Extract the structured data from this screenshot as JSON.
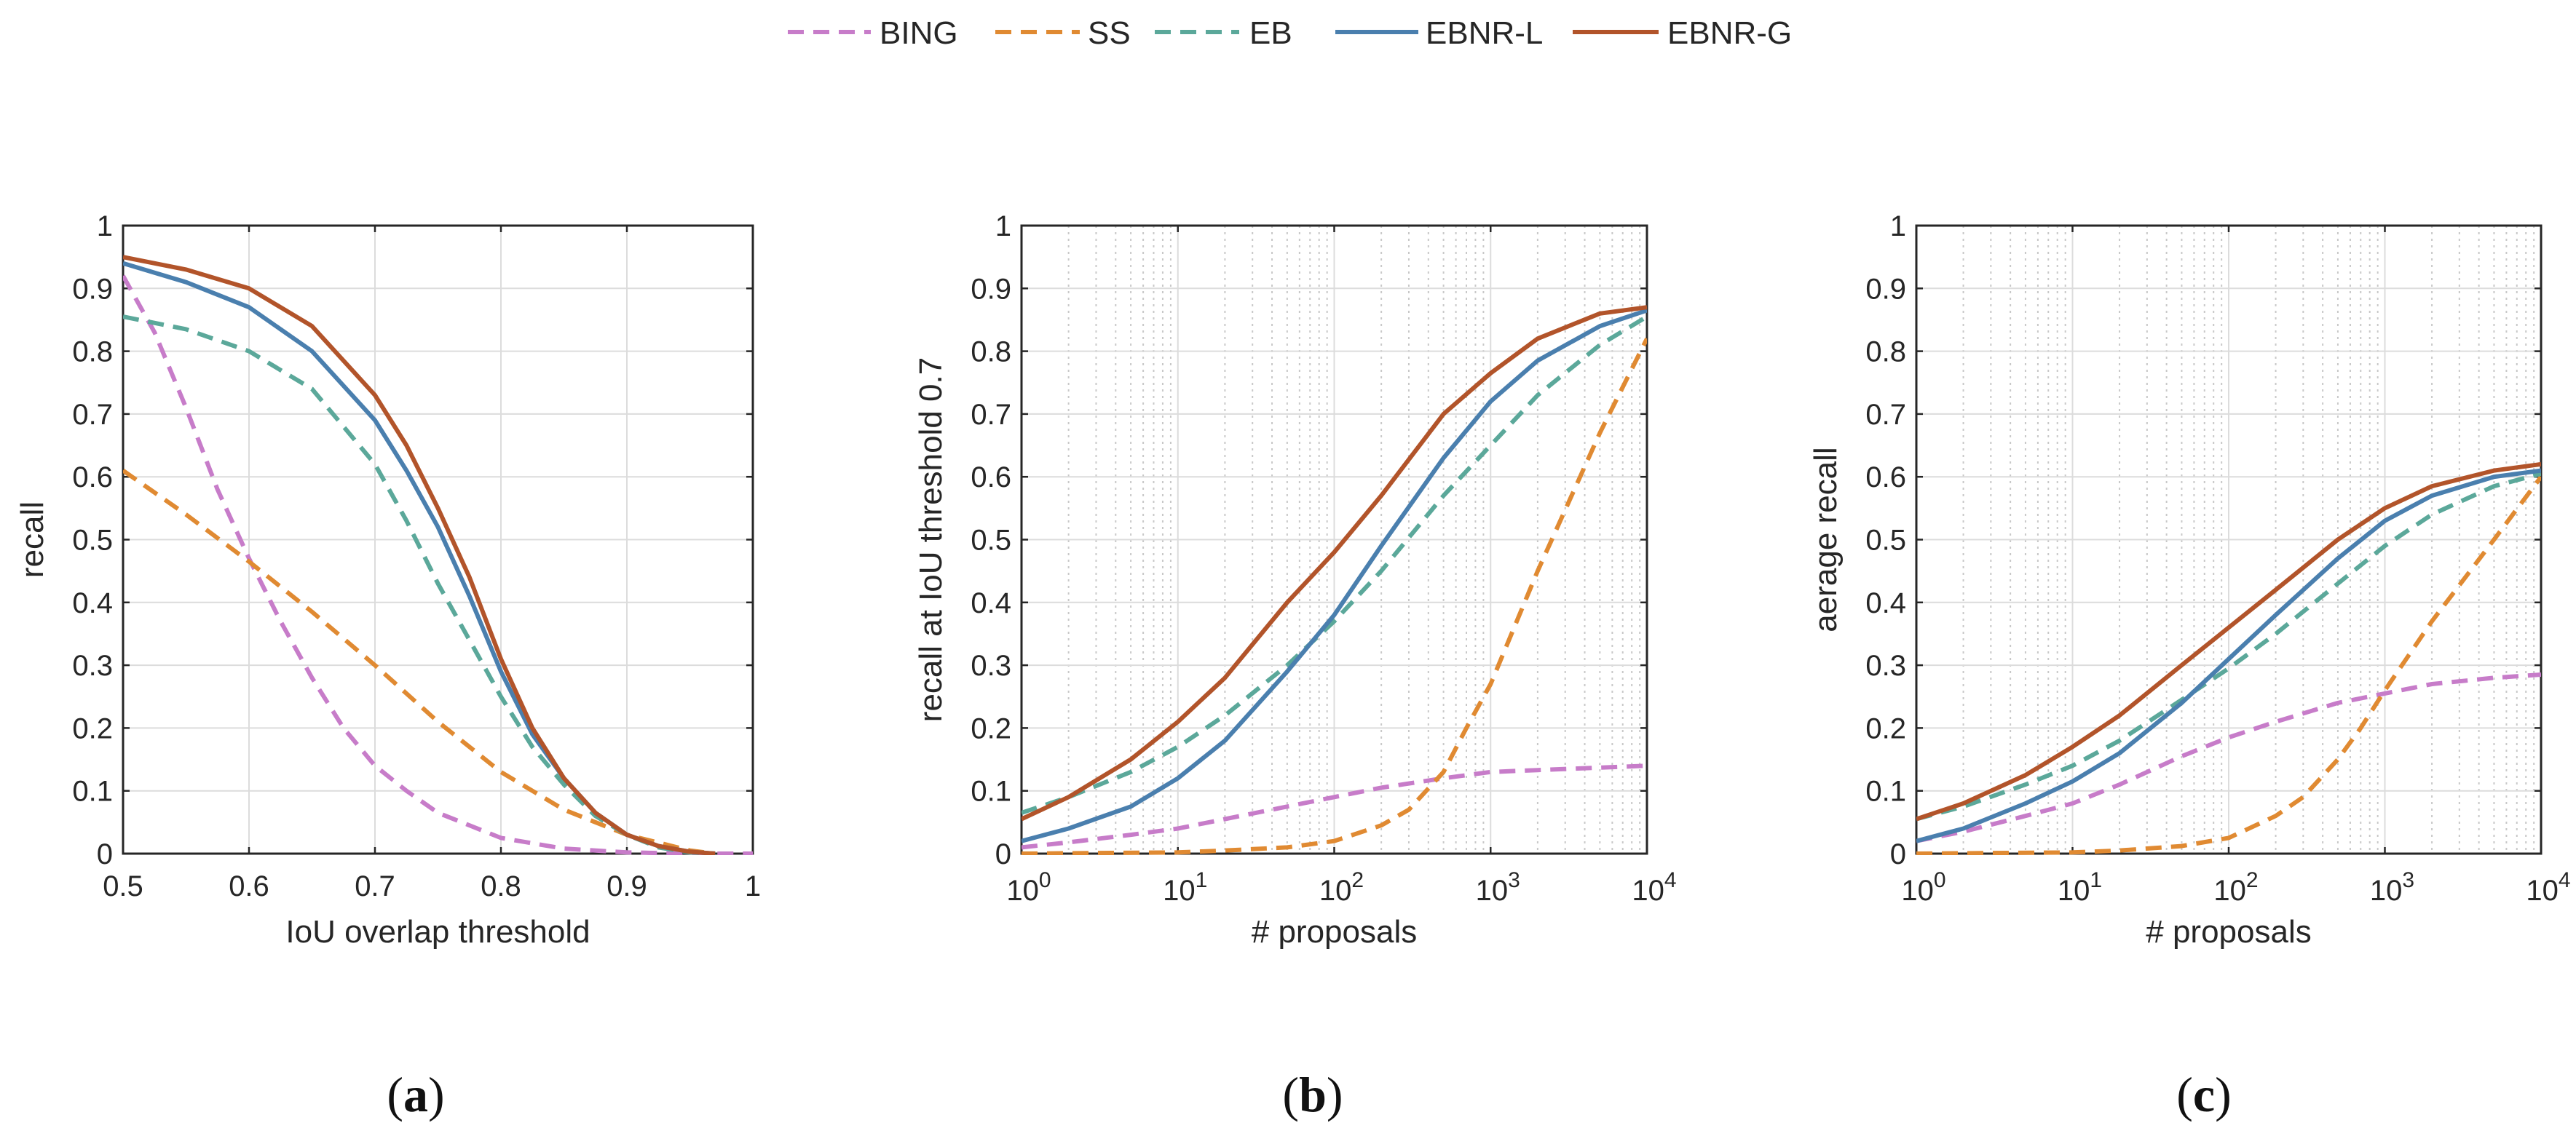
{
  "legend": {
    "entries": [
      {
        "name": "BING",
        "color": "#c77cc9",
        "dash": true
      },
      {
        "name": "SS",
        "color": "#e08a32",
        "dash": true
      },
      {
        "name": "EB",
        "color": "#5ba89a",
        "dash": true
      },
      {
        "name": "EBNR-L",
        "color": "#4a7fae",
        "dash": false
      },
      {
        "name": "EBNR-G",
        "color": "#b2542a",
        "dash": false
      }
    ]
  },
  "chart_data": [
    {
      "id": "a",
      "type": "line",
      "subcaption": "a",
      "xlabel": "IoU overlap threshold",
      "ylabel": "recall",
      "xscale": "linear",
      "xlim": [
        0.5,
        1
      ],
      "ylim": [
        0,
        1
      ],
      "xticks": [
        {
          "v": 0.5,
          "label": "0.5"
        },
        {
          "v": 0.6,
          "label": "0.6"
        },
        {
          "v": 0.7,
          "label": "0.7"
        },
        {
          "v": 0.8,
          "label": "0.8"
        },
        {
          "v": 0.9,
          "label": "0.9"
        },
        {
          "v": 1,
          "label": "1"
        }
      ],
      "yticks": [
        "0",
        "0.1",
        "0.2",
        "0.3",
        "0.4",
        "0.5",
        "0.6",
        "0.7",
        "0.8",
        "0.9",
        "1"
      ],
      "series": [
        {
          "name": "BING",
          "x": [
            0.5,
            0.525,
            0.55,
            0.575,
            0.6,
            0.625,
            0.65,
            0.675,
            0.7,
            0.725,
            0.75,
            0.8,
            0.85,
            0.9,
            0.95,
            1.0
          ],
          "y": [
            0.92,
            0.83,
            0.71,
            0.58,
            0.47,
            0.37,
            0.28,
            0.2,
            0.14,
            0.1,
            0.065,
            0.025,
            0.008,
            0.002,
            0.0,
            0.0
          ]
        },
        {
          "name": "SS",
          "x": [
            0.5,
            0.55,
            0.6,
            0.65,
            0.7,
            0.75,
            0.8,
            0.85,
            0.9,
            0.95,
            0.97
          ],
          "y": [
            0.61,
            0.54,
            0.465,
            0.385,
            0.3,
            0.21,
            0.13,
            0.07,
            0.03,
            0.005,
            0.0
          ]
        },
        {
          "name": "EB",
          "x": [
            0.5,
            0.55,
            0.6,
            0.65,
            0.7,
            0.725,
            0.75,
            0.775,
            0.8,
            0.825,
            0.85,
            0.875,
            0.9,
            0.925,
            0.95,
            0.97
          ],
          "y": [
            0.855,
            0.835,
            0.8,
            0.74,
            0.62,
            0.53,
            0.43,
            0.34,
            0.25,
            0.17,
            0.11,
            0.06,
            0.03,
            0.01,
            0.002,
            0.0
          ]
        },
        {
          "name": "EBNR-L",
          "x": [
            0.5,
            0.55,
            0.6,
            0.65,
            0.7,
            0.725,
            0.75,
            0.775,
            0.8,
            0.825,
            0.85,
            0.875,
            0.9,
            0.925,
            0.95,
            0.97
          ],
          "y": [
            0.94,
            0.91,
            0.87,
            0.8,
            0.69,
            0.61,
            0.52,
            0.41,
            0.29,
            0.19,
            0.12,
            0.065,
            0.03,
            0.012,
            0.003,
            0.0
          ]
        },
        {
          "name": "EBNR-G",
          "x": [
            0.5,
            0.55,
            0.6,
            0.65,
            0.7,
            0.725,
            0.75,
            0.775,
            0.8,
            0.825,
            0.85,
            0.875,
            0.9,
            0.925,
            0.95,
            0.97
          ],
          "y": [
            0.95,
            0.93,
            0.9,
            0.84,
            0.73,
            0.65,
            0.55,
            0.44,
            0.31,
            0.2,
            0.12,
            0.065,
            0.03,
            0.012,
            0.003,
            0.0
          ]
        }
      ]
    },
    {
      "id": "b",
      "type": "line",
      "subcaption": "b",
      "xlabel": "# proposals",
      "ylabel": "recall at IoU threshold 0.7",
      "xscale": "log",
      "xlim": [
        1,
        10000
      ],
      "ylim": [
        0,
        1
      ],
      "xticks": [
        {
          "v": 1,
          "base": "10",
          "exp": "0"
        },
        {
          "v": 10,
          "base": "10",
          "exp": "1"
        },
        {
          "v": 100,
          "base": "10",
          "exp": "2"
        },
        {
          "v": 1000,
          "base": "10",
          "exp": "3"
        },
        {
          "v": 10000,
          "base": "10",
          "exp": "4"
        }
      ],
      "yticks": [
        "0",
        "0.1",
        "0.2",
        "0.3",
        "0.4",
        "0.5",
        "0.6",
        "0.7",
        "0.8",
        "0.9",
        "1"
      ],
      "series": [
        {
          "name": "BING",
          "x": [
            1,
            2,
            5,
            10,
            20,
            50,
            100,
            200,
            500,
            1000,
            2000,
            5000,
            10000
          ],
          "y": [
            0.01,
            0.018,
            0.03,
            0.04,
            0.055,
            0.075,
            0.09,
            0.105,
            0.12,
            0.13,
            0.133,
            0.137,
            0.14
          ]
        },
        {
          "name": "SS",
          "x": [
            1,
            10,
            20,
            50,
            100,
            200,
            300,
            500,
            700,
            1000,
            2000,
            5000,
            10000
          ],
          "y": [
            0.0,
            0.002,
            0.005,
            0.01,
            0.02,
            0.045,
            0.07,
            0.13,
            0.2,
            0.27,
            0.45,
            0.67,
            0.82
          ]
        },
        {
          "name": "EB",
          "x": [
            1,
            2,
            5,
            10,
            20,
            50,
            100,
            200,
            500,
            1000,
            2000,
            5000,
            10000
          ],
          "y": [
            0.065,
            0.09,
            0.13,
            0.17,
            0.22,
            0.3,
            0.37,
            0.45,
            0.57,
            0.65,
            0.73,
            0.81,
            0.855
          ]
        },
        {
          "name": "EBNR-L",
          "x": [
            1,
            2,
            5,
            10,
            20,
            50,
            100,
            200,
            500,
            1000,
            2000,
            5000,
            10000
          ],
          "y": [
            0.02,
            0.04,
            0.075,
            0.12,
            0.18,
            0.29,
            0.38,
            0.49,
            0.63,
            0.72,
            0.785,
            0.84,
            0.865
          ]
        },
        {
          "name": "EBNR-G",
          "x": [
            1,
            2,
            5,
            10,
            20,
            50,
            100,
            200,
            500,
            1000,
            2000,
            5000,
            10000
          ],
          "y": [
            0.055,
            0.09,
            0.15,
            0.21,
            0.28,
            0.4,
            0.48,
            0.57,
            0.7,
            0.765,
            0.82,
            0.86,
            0.87
          ]
        }
      ]
    },
    {
      "id": "c",
      "type": "line",
      "subcaption": "c",
      "xlabel": "# proposals",
      "ylabel": "aerage recall",
      "xscale": "log",
      "xlim": [
        1,
        10000
      ],
      "ylim": [
        0,
        1
      ],
      "xticks": [
        {
          "v": 1,
          "base": "10",
          "exp": "0"
        },
        {
          "v": 10,
          "base": "10",
          "exp": "1"
        },
        {
          "v": 100,
          "base": "10",
          "exp": "2"
        },
        {
          "v": 1000,
          "base": "10",
          "exp": "3"
        },
        {
          "v": 10000,
          "base": "10",
          "exp": "4"
        }
      ],
      "yticks": [
        "0",
        "0.1",
        "0.2",
        "0.3",
        "0.4",
        "0.5",
        "0.6",
        "0.7",
        "0.8",
        "0.9",
        "1"
      ],
      "series": [
        {
          "name": "BING",
          "x": [
            1,
            2,
            5,
            10,
            20,
            50,
            100,
            200,
            500,
            1000,
            2000,
            5000,
            10000
          ],
          "y": [
            0.02,
            0.035,
            0.06,
            0.08,
            0.11,
            0.155,
            0.185,
            0.21,
            0.24,
            0.255,
            0.27,
            0.28,
            0.285
          ]
        },
        {
          "name": "SS",
          "x": [
            1,
            10,
            20,
            50,
            100,
            200,
            300,
            500,
            700,
            1000,
            2000,
            5000,
            10000
          ],
          "y": [
            0.0,
            0.002,
            0.005,
            0.012,
            0.025,
            0.06,
            0.09,
            0.15,
            0.2,
            0.26,
            0.37,
            0.5,
            0.6
          ]
        },
        {
          "name": "EB",
          "x": [
            1,
            2,
            5,
            10,
            20,
            50,
            100,
            200,
            500,
            1000,
            2000,
            5000,
            10000
          ],
          "y": [
            0.055,
            0.075,
            0.11,
            0.14,
            0.18,
            0.245,
            0.295,
            0.35,
            0.43,
            0.49,
            0.54,
            0.585,
            0.605
          ]
        },
        {
          "name": "EBNR-L",
          "x": [
            1,
            2,
            5,
            10,
            20,
            50,
            100,
            200,
            500,
            1000,
            2000,
            5000,
            10000
          ],
          "y": [
            0.02,
            0.04,
            0.08,
            0.115,
            0.16,
            0.24,
            0.31,
            0.38,
            0.47,
            0.53,
            0.57,
            0.6,
            0.61
          ]
        },
        {
          "name": "EBNR-G",
          "x": [
            1,
            2,
            5,
            10,
            20,
            50,
            100,
            200,
            500,
            1000,
            2000,
            5000,
            10000
          ],
          "y": [
            0.055,
            0.08,
            0.125,
            0.17,
            0.22,
            0.3,
            0.36,
            0.42,
            0.5,
            0.55,
            0.585,
            0.61,
            0.62
          ]
        }
      ]
    }
  ]
}
